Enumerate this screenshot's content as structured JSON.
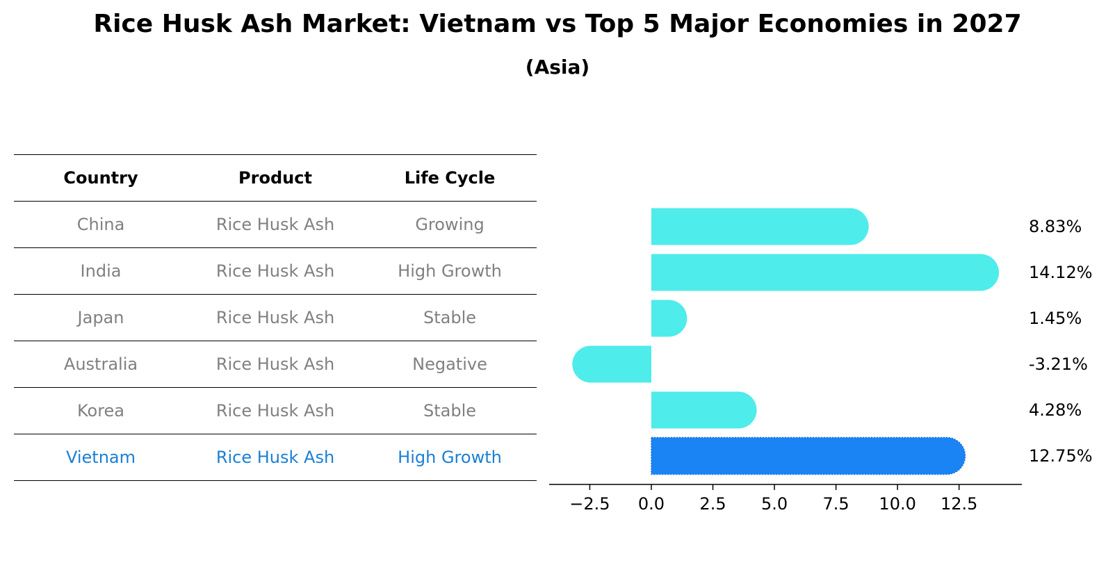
{
  "title": "Rice Husk Ash Market: Vietnam vs Top 5 Major Economies in 2027",
  "subtitle": "(Asia)",
  "table": {
    "headers": [
      "Country",
      "Product",
      "Life Cycle"
    ],
    "rows": [
      [
        "China",
        "Rice Husk Ash",
        "Growing"
      ],
      [
        "India",
        "Rice Husk Ash",
        "High Growth"
      ],
      [
        "Japan",
        "Rice Husk Ash",
        "Stable"
      ],
      [
        "Australia",
        "Rice Husk Ash",
        "Negative"
      ],
      [
        "Korea",
        "Rice Husk Ash",
        "Stable"
      ],
      [
        "Vietnam",
        "Rice Husk Ash",
        "High Growth"
      ]
    ],
    "highlight_row": 5
  },
  "colors": {
    "bar": "#4eecea",
    "highlight": "#1a84f5",
    "highlight_text": "#1a7fd4",
    "muted_text": "#808080"
  },
  "chart_data": {
    "type": "bar",
    "orientation": "horizontal",
    "categories": [
      "China",
      "India",
      "Japan",
      "Australia",
      "Korea",
      "Vietnam"
    ],
    "values": [
      8.83,
      14.12,
      1.45,
      -3.21,
      4.28,
      12.75
    ],
    "value_labels": [
      "8.83%",
      "14.12%",
      "1.45%",
      "-3.21%",
      "4.28%",
      "12.75%"
    ],
    "highlight_index": 5,
    "xlim": [
      -4.15,
      15.05
    ],
    "xticks": [
      -2.5,
      0.0,
      2.5,
      5.0,
      7.5,
      10.0,
      12.5
    ],
    "xtick_labels": [
      "−2.5",
      "0.0",
      "2.5",
      "5.0",
      "7.5",
      "10.0",
      "12.5"
    ],
    "grid": false,
    "legend": "none"
  }
}
